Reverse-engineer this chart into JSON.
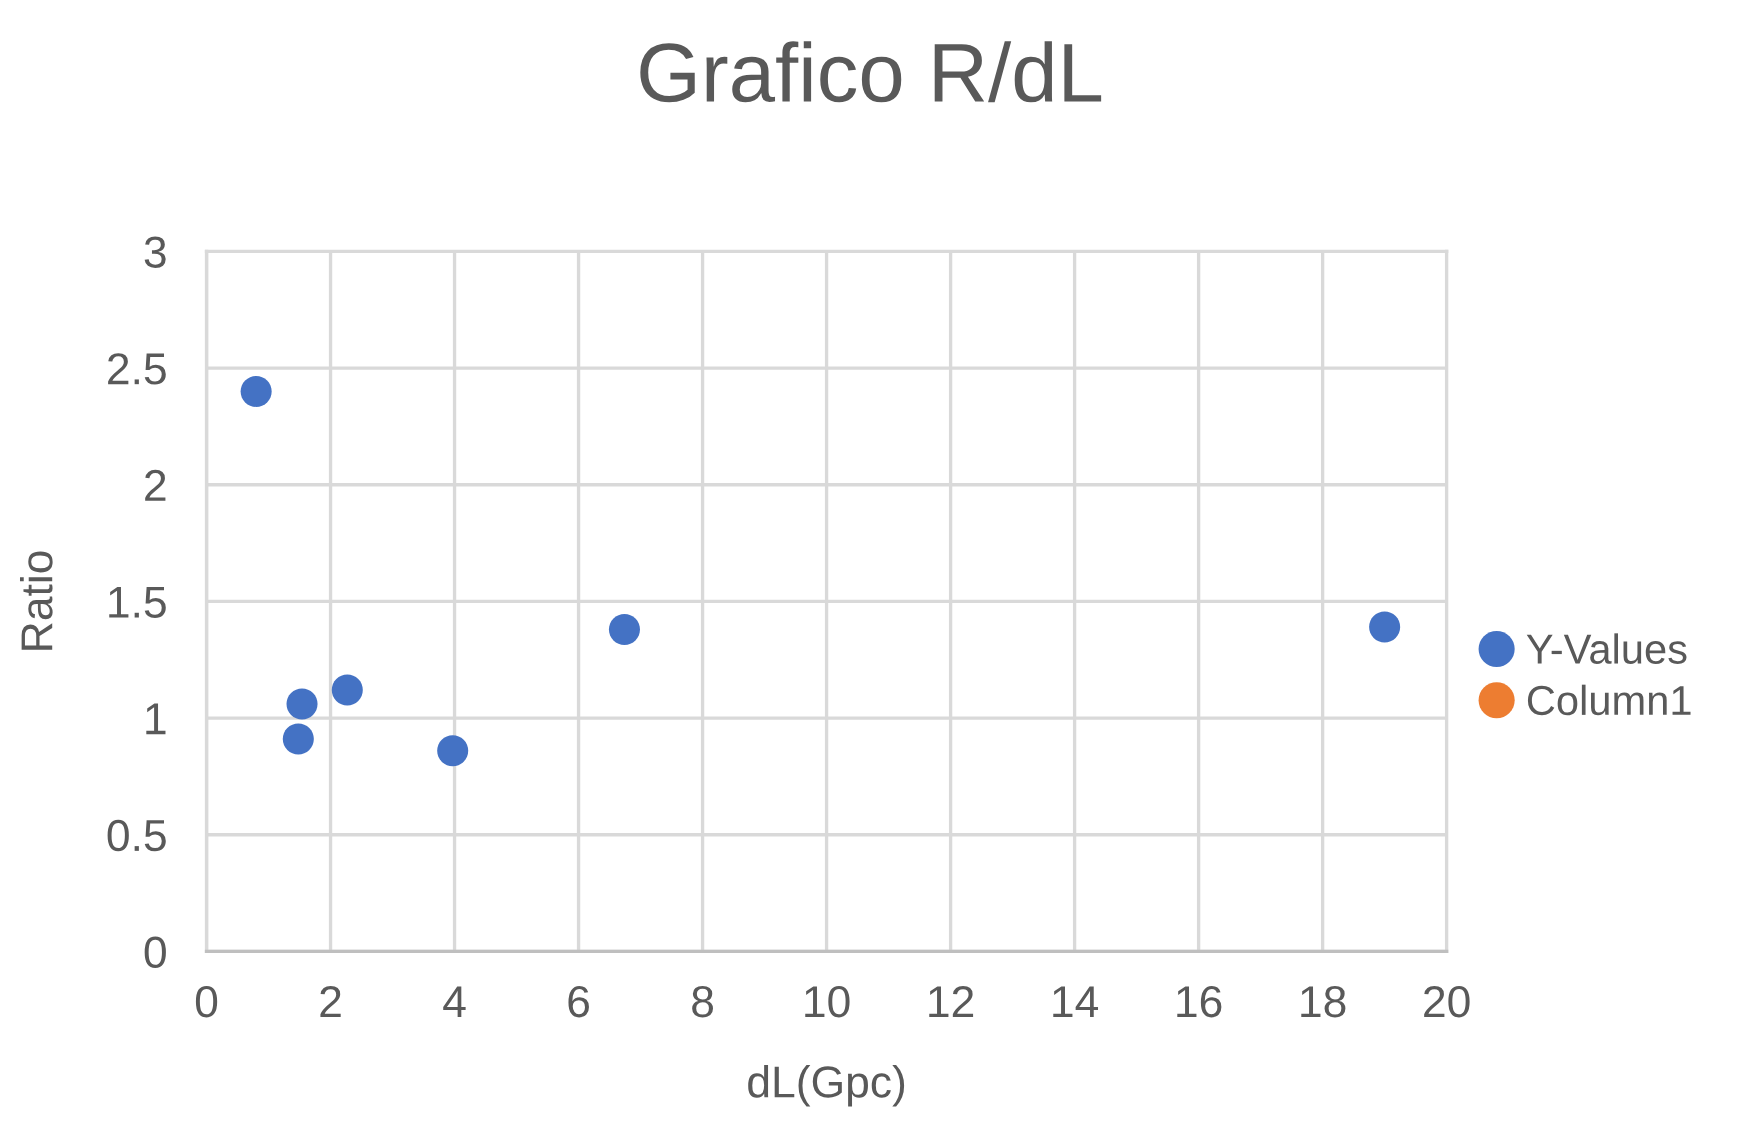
{
  "chart_data": {
    "type": "scatter",
    "title": "Grafico R/dL",
    "xlabel": "dL(Gpc)",
    "ylabel": "Ratio",
    "series": [
      {
        "name": "Y-Values",
        "color": "#4472c4",
        "x": [
          0.8,
          1.54,
          1.48,
          2.27,
          3.97,
          6.74,
          19.0
        ],
        "values": [
          2.4,
          1.06,
          0.91,
          1.12,
          0.86,
          1.38,
          1.39
        ]
      },
      {
        "name": "Column1",
        "color": "#ed7d31"
      }
    ],
    "xlim": [
      0,
      20
    ],
    "xticks": [
      0,
      2,
      4,
      6,
      8,
      10,
      12,
      14,
      16,
      18,
      20
    ],
    "ylim": [
      0,
      3
    ],
    "yticks": [
      0,
      0.5,
      1,
      1.5,
      2,
      2.5,
      3
    ],
    "grid": true,
    "legend": "right",
    "marker": "circle"
  }
}
